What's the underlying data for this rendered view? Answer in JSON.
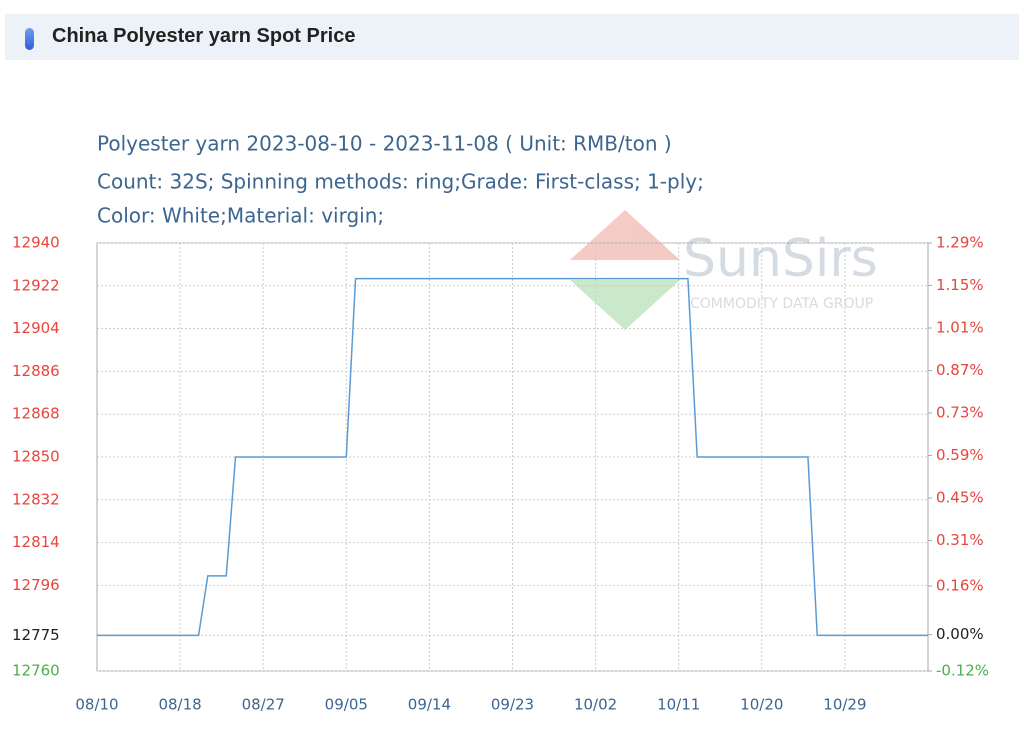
{
  "header": {
    "title": "China Polyester yarn Spot Price"
  },
  "chart_data": {
    "type": "line",
    "title": "Polyester yarn 2023-08-10 - 2023-11-08     ( Unit: RMB/ton )",
    "subtitle": [
      "Count: 32S; Spinning methods: ring;Grade: First-class; 1-ply;",
      "Color: White;Material: virgin;"
    ],
    "watermark": {
      "name": "SunSirs",
      "tagline": "COMMODITY DATA GROUP"
    },
    "categories": [
      "08/10",
      null,
      null,
      null,
      null,
      null,
      null,
      null,
      null,
      "08/18",
      null,
      null,
      null,
      null,
      null,
      null,
      null,
      null,
      "08/27",
      null,
      null,
      null,
      null,
      null,
      null,
      null,
      null,
      "09/05",
      null,
      null,
      null,
      null,
      null,
      null,
      null,
      null,
      "09/14",
      null,
      null,
      null,
      null,
      null,
      null,
      null,
      null,
      "09/23",
      null,
      null,
      null,
      null,
      null,
      null,
      null,
      null,
      "10/02",
      null,
      null,
      null,
      null,
      null,
      null,
      null,
      null,
      "10/11",
      null,
      null,
      null,
      null,
      null,
      null,
      null,
      null,
      "10/20",
      null,
      null,
      null,
      null,
      null,
      null,
      null,
      null,
      "10/29",
      null,
      null,
      null,
      null,
      null,
      null,
      null,
      null,
      null
    ],
    "series": [
      {
        "color": "#5b9bd5",
        "values": [
          12775,
          12775,
          12775,
          12775,
          12775,
          12775,
          12775,
          12775,
          12775,
          12775,
          12775,
          12775,
          12800,
          12800,
          12800,
          12850,
          12850,
          12850,
          12850,
          12850,
          12850,
          12850,
          12850,
          12850,
          12850,
          12850,
          12850,
          12850,
          12925,
          12925,
          12925,
          12925,
          12925,
          12925,
          12925,
          12925,
          12925,
          12925,
          12925,
          12925,
          12925,
          12925,
          12925,
          12925,
          12925,
          12925,
          12925,
          12925,
          12925,
          12925,
          12925,
          12925,
          12925,
          12925,
          12925,
          12925,
          12925,
          12925,
          12925,
          12925,
          12925,
          12925,
          12925,
          12925,
          12925,
          12850,
          12850,
          12850,
          12850,
          12850,
          12850,
          12850,
          12850,
          12850,
          12850,
          12850,
          12850,
          12850,
          12775,
          12775,
          12775,
          12775,
          12775,
          12775,
          12775,
          12775,
          12775,
          12775,
          12775,
          12775,
          12775
        ]
      }
    ],
    "ylim": [
      12760,
      12940
    ],
    "yticks": [
      12940,
      12922,
      12904,
      12886,
      12868,
      12850,
      12832,
      12814,
      12796,
      12775,
      12760
    ],
    "ytick_colors": [
      "#e8453c",
      "#e8453c",
      "#e8453c",
      "#e8453c",
      "#e8453c",
      "#e8453c",
      "#e8453c",
      "#e8453c",
      "#e8453c",
      "#222222",
      "#4caf50"
    ],
    "y2lim": [
      -0.12,
      1.29
    ],
    "y2ticks": [
      {
        "value": 1.29,
        "label": "1.29%"
      },
      {
        "value": 1.15,
        "label": "1.15%"
      },
      {
        "value": 1.01,
        "label": "1.01%"
      },
      {
        "value": 0.87,
        "label": "0.87%"
      },
      {
        "value": 0.73,
        "label": "0.73%"
      },
      {
        "value": 0.59,
        "label": "0.59%"
      },
      {
        "value": 0.45,
        "label": "0.45%"
      },
      {
        "value": 0.31,
        "label": "0.31%"
      },
      {
        "value": 0.16,
        "label": "0.16%"
      },
      {
        "value": 0,
        "label": "0.00%"
      },
      {
        "value": -0.12,
        "label": "-0.12%"
      }
    ],
    "grid": true
  }
}
